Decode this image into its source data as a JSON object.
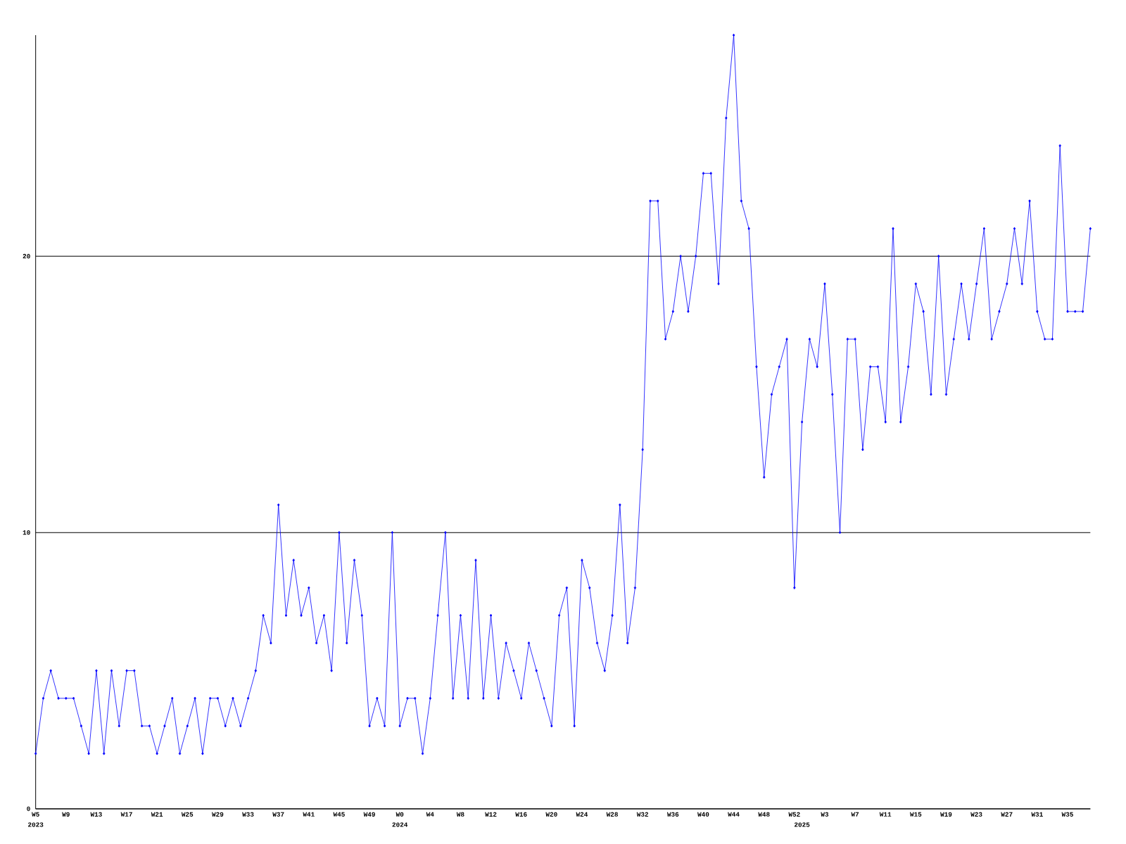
{
  "chart_data": {
    "type": "line",
    "categories": [
      "W5",
      null,
      null,
      null,
      "W9",
      null,
      null,
      null,
      "W13",
      null,
      null,
      null,
      "W17",
      null,
      null,
      null,
      "W21",
      null,
      null,
      null,
      "W25",
      null,
      null,
      null,
      "W29",
      null,
      null,
      null,
      "W33",
      null,
      null,
      null,
      "W37",
      null,
      null,
      null,
      "W41",
      null,
      null,
      null,
      "W45",
      null,
      null,
      null,
      "W49",
      null,
      null,
      null,
      "W0",
      null,
      null,
      null,
      "W4",
      null,
      null,
      null,
      "W8",
      null,
      null,
      null,
      "W12",
      null,
      null,
      null,
      "W16",
      null,
      null,
      null,
      "W20",
      null,
      null,
      null,
      "W24",
      null,
      null,
      null,
      "W28",
      null,
      null,
      null,
      "W32",
      null,
      null,
      null,
      "W36",
      null,
      null,
      null,
      "W40",
      null,
      null,
      null,
      "W44",
      null,
      null,
      null,
      "W48",
      null,
      null,
      null,
      "W52",
      null,
      null,
      null,
      "W3",
      null,
      null,
      null,
      "W7",
      null,
      null,
      null,
      "W11",
      null,
      null,
      null,
      "W15",
      null,
      null,
      null,
      "W19",
      null,
      null,
      null,
      "W23",
      null,
      null,
      null,
      "W27",
      null,
      null,
      null,
      "W31",
      null,
      null,
      null,
      "W35",
      null,
      null,
      null
    ],
    "series": [
      {
        "color": "#0000ff",
        "values": [
          2,
          4,
          5,
          4,
          4,
          4,
          3,
          2,
          5,
          2,
          5,
          3,
          5,
          5,
          3,
          3,
          2,
          3,
          4,
          2,
          3,
          4,
          2,
          4,
          4,
          3,
          4,
          3,
          4,
          5,
          7,
          6,
          11,
          7,
          9,
          7,
          8,
          6,
          7,
          5,
          10,
          6,
          9,
          7,
          3,
          4,
          3,
          10,
          3,
          4,
          4,
          2,
          4,
          7,
          10,
          4,
          7,
          4,
          9,
          4,
          7,
          4,
          6,
          5,
          4,
          6,
          5,
          4,
          3,
          7,
          8,
          3,
          9,
          8,
          6,
          5,
          7,
          11,
          6,
          8,
          13,
          22,
          22,
          17,
          18,
          20,
          18,
          20,
          23,
          23,
          19,
          25,
          28,
          22,
          21,
          16,
          12,
          15,
          16,
          17,
          8,
          14,
          17,
          16,
          19,
          15,
          10,
          17,
          17,
          13,
          16,
          16,
          14,
          21,
          14,
          16,
          19,
          18,
          15,
          20,
          15,
          17,
          19,
          17,
          19,
          21,
          17,
          18,
          19,
          21,
          19,
          22,
          18,
          17,
          17,
          24,
          18,
          18,
          18,
          21
        ]
      }
    ],
    "ylim": [
      0,
      28
    ],
    "yticks": [
      0,
      10,
      20
    ],
    "grid": "y",
    "marker": "diamond",
    "line_style": "solid",
    "annotations": [
      "2023",
      "2024",
      "2025"
    ]
  }
}
